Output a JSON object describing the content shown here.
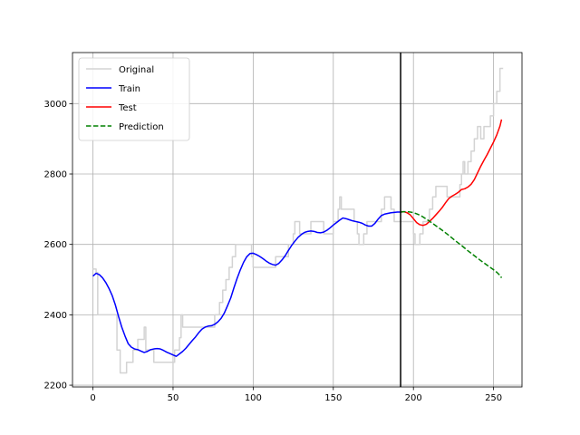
{
  "chart_data": {
    "type": "line",
    "title": "",
    "xlabel": "",
    "ylabel": "",
    "xlim": [
      -12.75,
      267.75
    ],
    "ylim": [
      2195,
      3145
    ],
    "xticks": [
      0,
      50,
      100,
      150,
      200,
      250
    ],
    "yticks": [
      2200,
      2400,
      2600,
      2800,
      3000
    ],
    "grid": true,
    "legend_position": "top-left",
    "split_x": 192,
    "series": [
      {
        "name": "Original",
        "color": "#d3d3d3",
        "style": "solid",
        "step": true,
        "points": [
          [
            0,
            2530
          ],
          [
            2,
            2520
          ],
          [
            3,
            2400
          ],
          [
            13,
            2400
          ],
          [
            15,
            2300
          ],
          [
            17,
            2235
          ],
          [
            20,
            2235
          ],
          [
            21,
            2265
          ],
          [
            24,
            2265
          ],
          [
            25,
            2300
          ],
          [
            28,
            2330
          ],
          [
            30,
            2330
          ],
          [
            32,
            2365
          ],
          [
            33,
            2300
          ],
          [
            37,
            2300
          ],
          [
            38,
            2265
          ],
          [
            50,
            2265
          ],
          [
            51,
            2300
          ],
          [
            54,
            2335
          ],
          [
            55,
            2400
          ],
          [
            56,
            2365
          ],
          [
            75,
            2365
          ],
          [
            76,
            2400
          ],
          [
            78,
            2400
          ],
          [
            79,
            2435
          ],
          [
            81,
            2470
          ],
          [
            83,
            2500
          ],
          [
            85,
            2535
          ],
          [
            87,
            2565
          ],
          [
            89,
            2600
          ],
          [
            98,
            2600
          ],
          [
            99,
            2565
          ],
          [
            100,
            2535
          ],
          [
            113,
            2535
          ],
          [
            114,
            2565
          ],
          [
            121,
            2565
          ],
          [
            122,
            2600
          ],
          [
            125,
            2630
          ],
          [
            126,
            2665
          ],
          [
            128,
            2665
          ],
          [
            129,
            2630
          ],
          [
            135,
            2630
          ],
          [
            136,
            2665
          ],
          [
            143,
            2665
          ],
          [
            144,
            2630
          ],
          [
            149,
            2630
          ],
          [
            150,
            2665
          ],
          [
            152,
            2665
          ],
          [
            153,
            2700
          ],
          [
            154,
            2735
          ],
          [
            155,
            2700
          ],
          [
            162,
            2700
          ],
          [
            163,
            2665
          ],
          [
            165,
            2630
          ],
          [
            166,
            2600
          ],
          [
            168,
            2600
          ],
          [
            169,
            2630
          ],
          [
            171,
            2665
          ],
          [
            179,
            2665
          ],
          [
            180,
            2700
          ],
          [
            182,
            2735
          ],
          [
            185,
            2735
          ],
          [
            186,
            2700
          ],
          [
            188,
            2665
          ],
          [
            199,
            2665
          ],
          [
            200,
            2630
          ],
          [
            201,
            2600
          ],
          [
            203,
            2600
          ],
          [
            204,
            2630
          ],
          [
            206,
            2665
          ],
          [
            210,
            2700
          ],
          [
            212,
            2735
          ],
          [
            214,
            2765
          ],
          [
            220,
            2765
          ],
          [
            221,
            2735
          ],
          [
            228,
            2735
          ],
          [
            229,
            2770
          ],
          [
            230,
            2800
          ],
          [
            231,
            2835
          ],
          [
            232,
            2800
          ],
          [
            234,
            2835
          ],
          [
            236,
            2865
          ],
          [
            238,
            2900
          ],
          [
            240,
            2935
          ],
          [
            242,
            2900
          ],
          [
            244,
            2935
          ],
          [
            247,
            2935
          ],
          [
            248,
            2965
          ],
          [
            250,
            3000
          ],
          [
            252,
            3035
          ],
          [
            254,
            3100
          ],
          [
            256,
            3100
          ]
        ]
      },
      {
        "name": "Train",
        "color": "#0000ff",
        "style": "solid",
        "step": false,
        "points": [
          [
            0,
            2510
          ],
          [
            2,
            2518
          ],
          [
            4,
            2514
          ],
          [
            6,
            2505
          ],
          [
            8,
            2492
          ],
          [
            10,
            2475
          ],
          [
            12,
            2455
          ],
          [
            14,
            2428
          ],
          [
            16,
            2395
          ],
          [
            18,
            2365
          ],
          [
            20,
            2340
          ],
          [
            22,
            2318
          ],
          [
            24,
            2308
          ],
          [
            26,
            2303
          ],
          [
            28,
            2301
          ],
          [
            30,
            2297
          ],
          [
            32,
            2293
          ],
          [
            34,
            2296
          ],
          [
            36,
            2301
          ],
          [
            38,
            2303
          ],
          [
            40,
            2304
          ],
          [
            42,
            2303
          ],
          [
            44,
            2299
          ],
          [
            46,
            2294
          ],
          [
            48,
            2290
          ],
          [
            50,
            2286
          ],
          [
            52,
            2282
          ],
          [
            54,
            2289
          ],
          [
            56,
            2296
          ],
          [
            58,
            2305
          ],
          [
            60,
            2316
          ],
          [
            62,
            2327
          ],
          [
            64,
            2337
          ],
          [
            66,
            2349
          ],
          [
            68,
            2359
          ],
          [
            70,
            2365
          ],
          [
            72,
            2368
          ],
          [
            74,
            2369
          ],
          [
            76,
            2373
          ],
          [
            78,
            2380
          ],
          [
            80,
            2390
          ],
          [
            82,
            2405
          ],
          [
            84,
            2426
          ],
          [
            86,
            2448
          ],
          [
            88,
            2477
          ],
          [
            90,
            2504
          ],
          [
            92,
            2528
          ],
          [
            94,
            2549
          ],
          [
            96,
            2565
          ],
          [
            98,
            2574
          ],
          [
            100,
            2575
          ],
          [
            102,
            2571
          ],
          [
            104,
            2566
          ],
          [
            106,
            2560
          ],
          [
            108,
            2553
          ],
          [
            110,
            2547
          ],
          [
            112,
            2543
          ],
          [
            114,
            2541
          ],
          [
            116,
            2546
          ],
          [
            118,
            2556
          ],
          [
            120,
            2568
          ],
          [
            122,
            2583
          ],
          [
            124,
            2597
          ],
          [
            126,
            2609
          ],
          [
            128,
            2620
          ],
          [
            130,
            2628
          ],
          [
            132,
            2634
          ],
          [
            134,
            2637
          ],
          [
            136,
            2638
          ],
          [
            138,
            2637
          ],
          [
            140,
            2634
          ],
          [
            142,
            2633
          ],
          [
            144,
            2635
          ],
          [
            146,
            2640
          ],
          [
            148,
            2647
          ],
          [
            150,
            2655
          ],
          [
            152,
            2662
          ],
          [
            154,
            2669
          ],
          [
            156,
            2675
          ],
          [
            158,
            2673
          ],
          [
            160,
            2670
          ],
          [
            162,
            2667
          ],
          [
            164,
            2665
          ],
          [
            166,
            2663
          ],
          [
            168,
            2660
          ],
          [
            170,
            2655
          ],
          [
            172,
            2652
          ],
          [
            174,
            2652
          ],
          [
            176,
            2660
          ],
          [
            178,
            2672
          ],
          [
            180,
            2682
          ],
          [
            182,
            2686
          ],
          [
            184,
            2688
          ],
          [
            186,
            2690
          ],
          [
            188,
            2691
          ],
          [
            190,
            2692
          ],
          [
            192,
            2692
          ]
        ]
      },
      {
        "name": "Test",
        "color": "#ff0000",
        "style": "solid",
        "step": false,
        "points": [
          [
            192,
            2692
          ],
          [
            194,
            2693
          ],
          [
            196,
            2690
          ],
          [
            198,
            2684
          ],
          [
            200,
            2673
          ],
          [
            202,
            2662
          ],
          [
            204,
            2656
          ],
          [
            206,
            2654
          ],
          [
            208,
            2657
          ],
          [
            210,
            2665
          ],
          [
            212,
            2674
          ],
          [
            214,
            2684
          ],
          [
            216,
            2694
          ],
          [
            218,
            2705
          ],
          [
            220,
            2718
          ],
          [
            222,
            2730
          ],
          [
            224,
            2737
          ],
          [
            226,
            2742
          ],
          [
            228,
            2748
          ],
          [
            230,
            2756
          ],
          [
            232,
            2758
          ],
          [
            234,
            2763
          ],
          [
            236,
            2771
          ],
          [
            238,
            2784
          ],
          [
            240,
            2803
          ],
          [
            242,
            2822
          ],
          [
            244,
            2839
          ],
          [
            246,
            2855
          ],
          [
            248,
            2873
          ],
          [
            250,
            2891
          ],
          [
            252,
            2911
          ],
          [
            254,
            2936
          ],
          [
            255,
            2955
          ]
        ]
      },
      {
        "name": "Prediction",
        "color": "#008000",
        "style": "dashed",
        "step": false,
        "points": [
          [
            192,
            2692
          ],
          [
            194,
            2693
          ],
          [
            196,
            2693
          ],
          [
            198,
            2692
          ],
          [
            200,
            2690
          ],
          [
            202,
            2687
          ],
          [
            204,
            2683
          ],
          [
            206,
            2678
          ],
          [
            208,
            2672
          ],
          [
            210,
            2666
          ],
          [
            214,
            2653
          ],
          [
            218,
            2640
          ],
          [
            222,
            2626
          ],
          [
            226,
            2611
          ],
          [
            230,
            2597
          ],
          [
            234,
            2582
          ],
          [
            238,
            2568
          ],
          [
            242,
            2554
          ],
          [
            246,
            2541
          ],
          [
            250,
            2528
          ],
          [
            252,
            2521
          ],
          [
            254,
            2512
          ],
          [
            255,
            2505
          ]
        ]
      }
    ]
  }
}
